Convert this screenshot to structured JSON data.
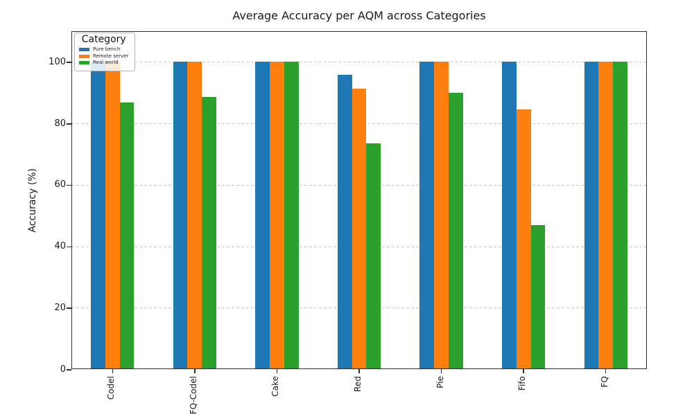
{
  "chart_data": {
    "type": "bar",
    "title": "Average Accuracy per AQM across Categories",
    "xlabel": "",
    "ylabel": "Accuracy (%)",
    "categories": [
      "Codel",
      "FQ-Codel",
      "Cake",
      "Red",
      "Pie",
      "Fifo",
      "FQ"
    ],
    "series": [
      {
        "name": "Pure bench",
        "color": "#1f77b4",
        "values": [
          100,
          100,
          100,
          95.8,
          100,
          100,
          100
        ]
      },
      {
        "name": "Remote server",
        "color": "#ff7f0e",
        "values": [
          100,
          100,
          100,
          91.3,
          100,
          84.5,
          100
        ]
      },
      {
        "name": "Real world",
        "color": "#2ca02c",
        "values": [
          86.8,
          88.5,
          100,
          73.5,
          90,
          46.8,
          100
        ]
      }
    ],
    "legend_title": "Category",
    "legend_position": "upper left",
    "ylim": [
      0,
      110
    ],
    "yticks": [
      0,
      20,
      40,
      60,
      80,
      100
    ],
    "grid": "dashed horizontal gridlines at y ticks",
    "x_tick_rotation": 90
  }
}
